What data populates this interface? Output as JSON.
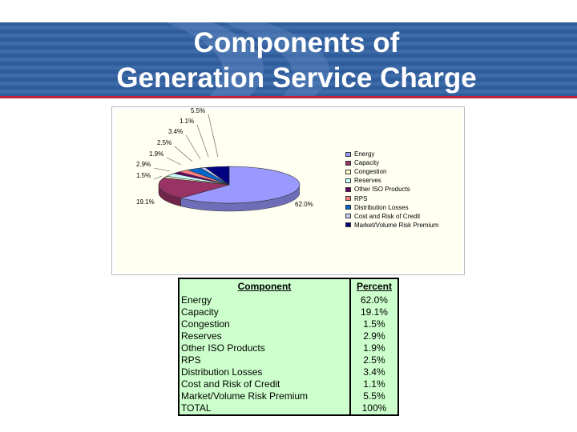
{
  "slide": {
    "title_line1": "Components of",
    "title_line2": "Generation Service Charge"
  },
  "colors": {
    "header_bg": "#2f5c9a",
    "header_line": "#c0243a",
    "table_bg": "#ccffcc"
  },
  "chart_data": {
    "type": "pie",
    "title": "",
    "legend_position": "right",
    "start_angle_deg": 90,
    "slices": [
      {
        "label": "Energy",
        "value": 62.0,
        "display": "62.0%",
        "color": "#9999ff"
      },
      {
        "label": "Capacity",
        "value": 19.1,
        "display": "19.1%",
        "color": "#993366"
      },
      {
        "label": "Congestion",
        "value": 1.5,
        "display": "1.5%",
        "color": "#ffffcc"
      },
      {
        "label": "Reserves",
        "value": 2.9,
        "display": "2.9%",
        "color": "#ccffff"
      },
      {
        "label": "Other ISO Products",
        "value": 1.9,
        "display": "1.9%",
        "color": "#660066"
      },
      {
        "label": "RPS",
        "value": 2.5,
        "display": "2.5%",
        "color": "#ff8080"
      },
      {
        "label": "Distribution Losses",
        "value": 3.4,
        "display": "3.4%",
        "color": "#0066cc"
      },
      {
        "label": "Cost and Risk of Credit",
        "value": 1.1,
        "display": "1.1%",
        "color": "#ccccff"
      },
      {
        "label": "Market/Volume Risk Premium",
        "value": 5.5,
        "display": "5.5%",
        "color": "#000080"
      }
    ]
  },
  "table": {
    "headers": [
      "Component",
      "Percent"
    ],
    "rows": [
      [
        "Energy",
        "62.0%"
      ],
      [
        "Capacity",
        "19.1%"
      ],
      [
        "Congestion",
        "1.5%"
      ],
      [
        "Reserves",
        "2.9%"
      ],
      [
        "Other ISO Products",
        "1.9%"
      ],
      [
        "RPS",
        "2.5%"
      ],
      [
        "Distribution Losses",
        "3.4%"
      ],
      [
        "Cost and Risk of Credit",
        "1.1%"
      ],
      [
        "Market/Volume Risk Premium",
        "5.5%"
      ],
      [
        "TOTAL",
        "100%"
      ]
    ]
  }
}
